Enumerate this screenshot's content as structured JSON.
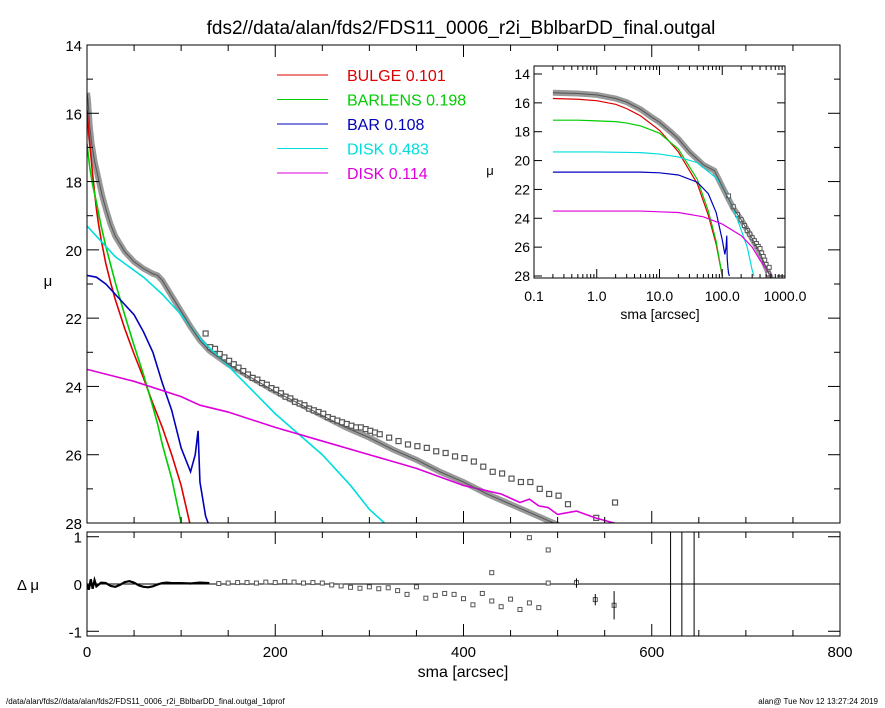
{
  "title": "fds2//data/alan/fds2/FDS11_0006_r2i_BblbarDD_final.outgal",
  "footer": {
    "left": "/data/alan/fds2//data/alan/fds2/FDS11_0006_r2i_BblbarDD_final.outgal_1dprof",
    "right": "alan@  Tue Nov 12 13:27:24 2019"
  },
  "chart_data": [
    {
      "id": "main",
      "type": "line",
      "xlabel": "",
      "ylabel": "μ",
      "xlim": [
        0,
        800
      ],
      "ylim": [
        28,
        14
      ],
      "y_inverted": true,
      "yticks": [
        "14",
        "16",
        "18",
        "20",
        "22",
        "24",
        "26",
        "28"
      ],
      "legend_position": "top-center",
      "series": [
        {
          "name": "BULGE",
          "value": "0.101",
          "color": "#dd0000",
          "x": [
            0,
            2,
            4,
            6,
            8,
            10,
            12,
            15,
            20,
            25,
            30,
            40,
            50,
            60,
            70,
            80,
            90,
            100,
            110
          ],
          "y": [
            15.9,
            16.6,
            17.2,
            17.8,
            18.3,
            18.8,
            19.2,
            19.7,
            20.4,
            20.95,
            21.45,
            22.3,
            23.05,
            23.75,
            24.5,
            25.2,
            26.0,
            26.9,
            28.1
          ]
        },
        {
          "name": "BARLENS",
          "value": "0.198",
          "color": "#00cc00",
          "x": [
            0,
            3,
            6,
            10,
            15,
            20,
            30,
            40,
            50,
            60,
            70,
            75,
            80,
            90,
            100
          ],
          "y": [
            16.9,
            17.6,
            18.1,
            18.6,
            19.3,
            19.9,
            20.95,
            21.9,
            22.8,
            23.65,
            24.6,
            25.1,
            25.7,
            26.7,
            28.0
          ]
        },
        {
          "name": "BAR",
          "value": "0.108",
          "color": "#0000bb",
          "x": [
            0,
            10,
            20,
            30,
            40,
            50,
            60,
            70,
            80,
            90,
            100,
            110,
            115,
            118,
            120,
            123,
            126,
            130
          ],
          "y": [
            20.75,
            20.8,
            21.0,
            21.3,
            21.6,
            21.9,
            22.4,
            23.0,
            23.9,
            24.7,
            25.8,
            26.5,
            26.0,
            25.3,
            26.8,
            27.3,
            27.8,
            28.1
          ]
        },
        {
          "name": "DISK",
          "value": "0.483",
          "color": "#00dddd",
          "x": [
            0,
            10,
            20,
            30,
            40,
            50,
            60,
            70,
            80,
            90,
            100,
            120,
            150,
            200,
            250,
            280,
            300,
            320
          ],
          "y": [
            19.3,
            19.6,
            19.9,
            20.2,
            20.4,
            20.6,
            20.8,
            21.05,
            21.3,
            21.6,
            21.9,
            22.6,
            23.4,
            24.8,
            26.0,
            26.9,
            27.6,
            28.1
          ]
        },
        {
          "name": "DISK",
          "value": "0.114",
          "color": "#dd00dd",
          "x": [
            0,
            50,
            100,
            120,
            150,
            200,
            250,
            300,
            350,
            400,
            440,
            460,
            470,
            480,
            490,
            500,
            520,
            540,
            560,
            580
          ],
          "y": [
            23.5,
            23.85,
            24.3,
            24.55,
            24.75,
            25.2,
            25.6,
            26.0,
            26.4,
            26.9,
            27.15,
            27.4,
            27.3,
            27.5,
            27.55,
            27.75,
            27.65,
            27.85,
            28.0,
            28.1
          ]
        },
        {
          "name": "",
          "color": "#555555",
          "x": [
            0,
            1,
            2,
            3,
            5,
            8,
            12,
            16,
            20,
            25,
            30,
            40,
            50,
            60,
            70,
            75,
            80,
            90,
            100,
            110,
            120,
            130,
            150,
            175,
            200,
            225,
            250,
            275,
            300,
            325,
            350,
            375,
            400,
            425,
            450,
            475,
            500,
            525,
            550
          ],
          "y": [
            15.4,
            15.6,
            16.0,
            16.4,
            16.9,
            17.4,
            17.9,
            18.4,
            18.8,
            19.25,
            19.6,
            20.05,
            20.35,
            20.55,
            20.7,
            20.75,
            20.9,
            21.35,
            21.8,
            22.25,
            22.65,
            22.95,
            23.35,
            23.75,
            24.15,
            24.5,
            24.85,
            25.2,
            25.5,
            25.85,
            26.15,
            26.5,
            26.8,
            27.15,
            27.45,
            27.75,
            28.05,
            28.35,
            28.65
          ]
        }
      ],
      "observed": {
        "x": [
          126,
          131,
          136,
          141,
          146,
          151,
          156,
          161,
          166,
          171,
          176,
          181,
          186,
          191,
          196,
          201,
          206,
          211,
          216,
          221,
          226,
          231,
          236,
          241,
          246,
          251,
          256,
          261,
          266,
          271,
          276,
          281,
          286,
          291,
          296,
          301,
          306,
          311,
          321,
          331,
          341,
          351,
          361,
          371,
          381,
          391,
          401,
          411,
          421,
          431,
          441,
          451,
          461,
          471,
          481,
          491,
          501,
          511,
          541,
          561
        ],
        "y": [
          22.45,
          22.85,
          22.9,
          23.05,
          23.15,
          23.25,
          23.35,
          23.45,
          23.55,
          23.65,
          23.75,
          23.8,
          23.9,
          23.95,
          24.05,
          24.1,
          24.2,
          24.3,
          24.35,
          24.45,
          24.5,
          24.55,
          24.65,
          24.7,
          24.75,
          24.8,
          24.9,
          24.95,
          25.0,
          25.05,
          25.1,
          25.15,
          25.2,
          25.2,
          25.25,
          25.3,
          25.35,
          25.4,
          25.5,
          25.6,
          25.7,
          25.75,
          25.8,
          25.9,
          25.95,
          26.05,
          26.1,
          26.2,
          26.35,
          26.5,
          26.55,
          26.7,
          26.8,
          26.8,
          27.0,
          27.15,
          27.2,
          27.45,
          27.85,
          27.4
        ]
      }
    },
    {
      "id": "residual",
      "type": "scatter",
      "xlabel": "sma [arcsec]",
      "ylabel": "Δ μ",
      "xlim": [
        0,
        800
      ],
      "ylim": [
        -1.1,
        1.1
      ],
      "xticks": [
        "0",
        "200",
        "400",
        "600",
        "800"
      ],
      "yticks": [
        "1",
        "0",
        "-1"
      ],
      "curve": {
        "x": [
          0,
          2,
          4,
          6,
          8,
          10,
          15,
          20,
          25,
          30,
          35,
          40,
          45,
          50,
          55,
          60,
          65,
          70,
          75,
          80,
          85,
          90,
          100,
          110,
          120,
          130
        ],
        "y": [
          0.0,
          -0.12,
          0.1,
          -0.1,
          0.08,
          -0.05,
          0.03,
          0.02,
          -0.04,
          -0.06,
          -0.02,
          0.04,
          0.06,
          0.03,
          -0.03,
          -0.06,
          -0.07,
          -0.05,
          -0.01,
          0.02,
          0.03,
          0.02,
          0.02,
          0.01,
          0.03,
          0.02
        ]
      },
      "points": {
        "x": [
          140,
          150,
          160,
          170,
          180,
          190,
          200,
          210,
          220,
          230,
          240,
          250,
          260,
          270,
          280,
          290,
          300,
          310,
          320,
          330,
          340,
          350,
          360,
          370,
          380,
          390,
          400,
          410,
          420,
          430,
          440,
          450,
          460,
          470,
          480,
          490,
          520,
          540,
          560
        ],
        "y": [
          0.01,
          0.02,
          0.03,
          0.03,
          0.02,
          0.04,
          0.03,
          0.05,
          0.04,
          0.02,
          0.03,
          0.02,
          -0.02,
          -0.04,
          -0.07,
          -0.09,
          -0.06,
          -0.1,
          -0.08,
          -0.14,
          -0.22,
          -0.06,
          -0.3,
          -0.24,
          -0.2,
          -0.22,
          -0.31,
          -0.44,
          -0.2,
          -0.36,
          -0.48,
          -0.32,
          -0.54,
          -0.4,
          -0.5,
          0.02,
          0.03,
          -0.33,
          -0.45
        ],
        "errorbar_x": [
          520,
          540,
          560
        ],
        "errorbar_y": [
          0.02,
          -0.33,
          -0.45
        ],
        "errorbar_halfwidth": [
          0.1,
          0.12,
          0.3
        ],
        "outliers_x": [
          430,
          470,
          490
        ],
        "outliers_y": [
          0.24,
          0.98,
          0.72
        ]
      },
      "vertical_lines_x": [
        620,
        632,
        645
      ]
    },
    {
      "id": "inset",
      "type": "line",
      "xlabel": "sma [arcsec]",
      "ylabel": "μ",
      "xscale": "log",
      "xlim": [
        0.1,
        1000
      ],
      "ylim": [
        28,
        14
      ],
      "xticks": [
        "0.1",
        "1.0",
        "10.0",
        "100.0",
        "1000.0"
      ],
      "yticks": [
        "14",
        "16",
        "18",
        "20",
        "22",
        "24",
        "26",
        "28"
      ],
      "series": [
        {
          "name": "BULGE",
          "color": "#dd0000",
          "x": [
            0.2,
            0.5,
            1,
            2,
            3,
            5,
            10,
            20,
            40,
            60,
            80,
            100
          ],
          "y": [
            15.7,
            15.75,
            15.85,
            16.1,
            16.4,
            16.9,
            17.9,
            19.4,
            21.6,
            23.8,
            25.8,
            28.0
          ]
        },
        {
          "name": "BARLENS",
          "color": "#00cc00",
          "x": [
            0.2,
            0.5,
            1,
            2,
            3,
            5,
            10,
            20,
            40,
            60,
            80,
            100
          ],
          "y": [
            17.2,
            17.2,
            17.25,
            17.3,
            17.4,
            17.6,
            18.1,
            19.2,
            21.3,
            23.5,
            25.6,
            28.0
          ]
        },
        {
          "name": "BAR",
          "color": "#0000bb",
          "x": [
            0.2,
            1,
            5,
            10,
            20,
            40,
            60,
            80,
            100,
            110,
            115,
            118,
            120,
            123,
            126,
            130
          ],
          "y": [
            20.8,
            20.8,
            20.8,
            20.85,
            21.0,
            21.5,
            22.3,
            23.6,
            25.5,
            26.5,
            26.0,
            25.2,
            26.8,
            27.4,
            27.8,
            28.0
          ]
        },
        {
          "name": "DISK",
          "color": "#00dddd",
          "x": [
            0.2,
            1,
            5,
            10,
            20,
            40,
            80,
            100,
            150,
            200,
            250,
            300,
            320
          ],
          "y": [
            19.4,
            19.4,
            19.45,
            19.55,
            19.75,
            20.15,
            21.2,
            21.8,
            23.3,
            24.8,
            26.0,
            27.6,
            28.0
          ]
        },
        {
          "name": "DISK",
          "color": "#dd00dd",
          "x": [
            0.2,
            1,
            5,
            10,
            20,
            50,
            100,
            200,
            300,
            400,
            500,
            580
          ],
          "y": [
            23.5,
            23.5,
            23.5,
            23.55,
            23.6,
            23.9,
            24.4,
            25.2,
            26.0,
            26.9,
            27.5,
            28.0
          ]
        },
        {
          "name": "",
          "color": "#555555",
          "x": [
            0.2,
            0.5,
            1,
            2,
            3,
            5,
            7,
            10,
            15,
            20,
            30,
            50,
            75,
            100,
            150,
            200,
            300,
            400,
            500,
            600
          ],
          "y": [
            15.3,
            15.35,
            15.45,
            15.7,
            15.95,
            16.45,
            16.9,
            17.35,
            18.0,
            18.5,
            19.4,
            20.3,
            20.7,
            21.8,
            23.3,
            24.1,
            25.4,
            26.4,
            27.4,
            28.2
          ]
        }
      ],
      "observed": {
        "x": [
          126,
          150,
          175,
          200,
          225,
          250,
          275,
          300,
          325,
          350,
          375,
          400,
          425,
          450,
          475,
          500,
          540,
          560
        ],
        "y": [
          22.45,
          23.2,
          23.75,
          24.1,
          24.5,
          24.85,
          25.1,
          25.35,
          25.55,
          25.75,
          25.95,
          26.1,
          26.4,
          26.65,
          26.9,
          27.2,
          27.85,
          27.4
        ]
      }
    }
  ]
}
